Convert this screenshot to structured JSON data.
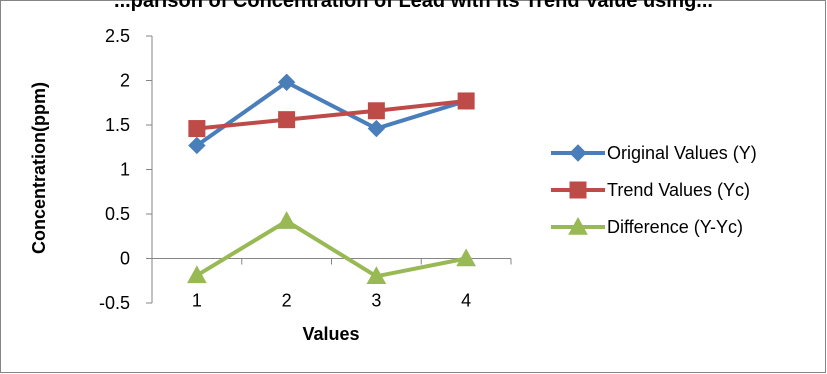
{
  "chart_data": {
    "type": "line",
    "title": "...parison of Concentration of Lead with its Trend Value using...",
    "xlabel": "Values",
    "ylabel": "Concentration(ppm)",
    "categories": [
      "1",
      "2",
      "3",
      "4"
    ],
    "ylim": [
      -0.5,
      2.5
    ],
    "yticks": [
      "-0.5",
      "0",
      "0.5",
      "1",
      "1.5",
      "2",
      "2.5"
    ],
    "grid": false,
    "legend_position": "right",
    "series": [
      {
        "name": "Original Values (Y)",
        "values": [
          1.27,
          1.98,
          1.46,
          1.77
        ],
        "color": "#4a7ebb",
        "marker": "diamond"
      },
      {
        "name": "Trend Values (Yc)",
        "values": [
          1.46,
          1.56,
          1.66,
          1.77
        ],
        "color": "#be4b48",
        "marker": "square"
      },
      {
        "name": "Difference (Y-Yc)",
        "values": [
          -0.19,
          0.42,
          -0.2,
          0.0
        ],
        "color": "#98b954",
        "marker": "triangle"
      }
    ]
  }
}
